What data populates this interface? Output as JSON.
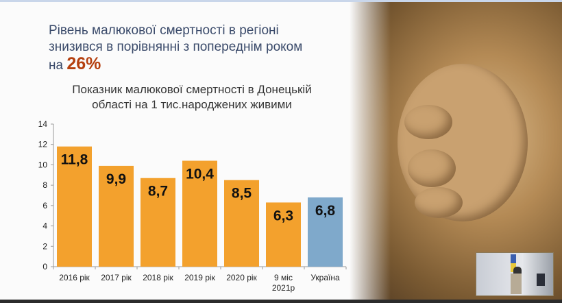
{
  "headline": {
    "line1": "Рівень малюкової смертності в регіоні",
    "line2": "знизився в порівнянні з попереднім роком",
    "line3_prefix": "на",
    "percent": "26%"
  },
  "chart_data": {
    "type": "bar",
    "title": "Показник малюкової смертності в Донецькій області на 1 тис.народжених живими",
    "title_line1": "Показник малюкової смертності в Донецькій",
    "title_line2": "області на 1 тис.народжених живими",
    "categories": [
      "2016 рік",
      "2017 рік",
      "2018 рік",
      "2019 рік",
      "2020 рік",
      "9 міс 2021р",
      "Україна"
    ],
    "values": [
      11.8,
      9.9,
      8.7,
      10.4,
      8.5,
      6.3,
      6.8
    ],
    "data_labels": [
      "11,8",
      "9,9",
      "8,7",
      "10,4",
      "8,5",
      "6,3",
      "6,8"
    ],
    "colors": [
      "#f3a12d",
      "#f3a12d",
      "#f3a12d",
      "#f3a12d",
      "#f3a12d",
      "#f3a12d",
      "#7fa9cb"
    ],
    "ylim": [
      0,
      14
    ],
    "yticks": [
      0,
      2,
      4,
      6,
      8,
      10,
      12,
      14
    ],
    "xlabel": "",
    "ylabel": "",
    "grid": false,
    "legend": "none"
  }
}
